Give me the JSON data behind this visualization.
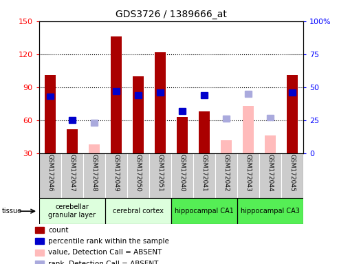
{
  "title": "GDS3726 / 1389666_at",
  "samples": [
    "GSM172046",
    "GSM172047",
    "GSM172048",
    "GSM172049",
    "GSM172050",
    "GSM172051",
    "GSM172040",
    "GSM172041",
    "GSM172042",
    "GSM172043",
    "GSM172044",
    "GSM172045"
  ],
  "count_values": [
    101,
    52,
    null,
    136,
    100,
    122,
    63,
    68,
    null,
    null,
    null,
    101
  ],
  "rank_values": [
    43,
    25,
    null,
    47,
    44,
    46,
    32,
    44,
    null,
    null,
    null,
    46
  ],
  "absent_count_values": [
    null,
    null,
    38,
    null,
    null,
    null,
    null,
    null,
    42,
    73,
    46,
    null
  ],
  "absent_rank_values": [
    null,
    null,
    23,
    null,
    null,
    null,
    null,
    null,
    26,
    45,
    27,
    null
  ],
  "tissue_groups": [
    {
      "label": "cerebellar\ngranular layer",
      "start": 0,
      "end": 3,
      "color": "#ddffdd"
    },
    {
      "label": "cerebral cortex",
      "start": 3,
      "end": 6,
      "color": "#ddffdd"
    },
    {
      "label": "hippocampal CA1",
      "start": 6,
      "end": 9,
      "color": "#55ee55"
    },
    {
      "label": "hippocampal CA3",
      "start": 9,
      "end": 12,
      "color": "#55ee55"
    }
  ],
  "ylim_left": [
    30,
    150
  ],
  "ylim_right": [
    0,
    100
  ],
  "bar_color": "#aa0000",
  "rank_color": "#0000cc",
  "absent_bar_color": "#ffbbbb",
  "absent_rank_color": "#aaaadd",
  "tick_left": [
    30,
    60,
    90,
    120,
    150
  ],
  "tick_right": [
    0,
    25,
    50,
    75,
    100
  ],
  "figsize": [
    4.93,
    3.84
  ],
  "dpi": 100
}
